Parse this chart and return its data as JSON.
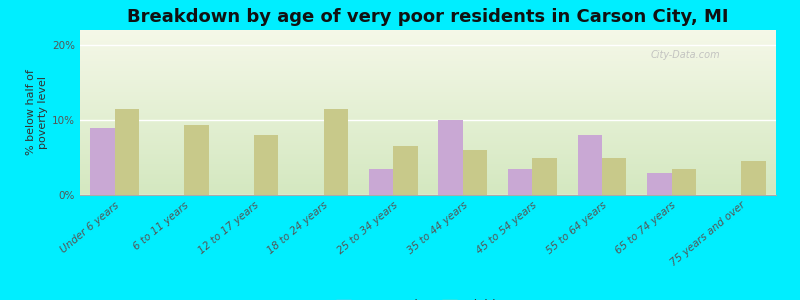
{
  "title": "Breakdown by age of very poor residents in Carson City, MI",
  "ylabel": "% below half of\npoverty level",
  "categories": [
    "Under 6 years",
    "6 to 11 years",
    "12 to 17 years",
    "18 to 24 years",
    "25 to 34 years",
    "35 to 44 years",
    "45 to 54 years",
    "55 to 64 years",
    "65 to 74 years",
    "75 years and over"
  ],
  "carson_city": [
    9.0,
    0.0,
    0.0,
    0.0,
    3.5,
    10.0,
    3.5,
    8.0,
    3.0,
    0.0
  ],
  "michigan": [
    11.5,
    9.3,
    8.0,
    11.5,
    6.5,
    6.0,
    5.0,
    5.0,
    3.5,
    4.5
  ],
  "carson_color": "#c9a8d4",
  "michigan_color": "#c8c98a",
  "background_color": "#00eeff",
  "plot_bg_top": "#f5f8e8",
  "plot_bg_bottom": "#d4e8c0",
  "ylim": [
    0,
    22
  ],
  "yticks": [
    0,
    10,
    20
  ],
  "ytick_labels": [
    "0%",
    "10%",
    "20%"
  ],
  "bar_width": 0.35,
  "title_fontsize": 13,
  "axis_label_fontsize": 8,
  "tick_fontsize": 7.5,
  "legend_fontsize": 9,
  "watermark": "City-Data.com"
}
